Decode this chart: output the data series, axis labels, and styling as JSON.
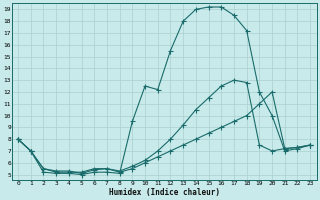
{
  "xlabel": "Humidex (Indice chaleur)",
  "xlim": [
    -0.5,
    23.5
  ],
  "ylim": [
    4.5,
    19.5
  ],
  "xticks": [
    0,
    1,
    2,
    3,
    4,
    5,
    6,
    7,
    8,
    9,
    10,
    11,
    12,
    13,
    14,
    15,
    16,
    17,
    18,
    19,
    20,
    21,
    22,
    23
  ],
  "yticks": [
    5,
    6,
    7,
    8,
    9,
    10,
    11,
    12,
    13,
    14,
    15,
    16,
    17,
    18,
    19
  ],
  "bg_color": "#c8eaea",
  "grid_color": "#aad0d0",
  "line_color": "#1a6b6b",
  "line1_x": [
    0,
    1,
    2,
    3,
    4,
    5,
    6,
    7,
    8,
    9,
    10,
    11,
    12,
    13,
    14,
    15,
    16,
    17,
    18,
    19,
    20,
    21,
    22,
    23
  ],
  "line1_y": [
    8,
    7,
    5.2,
    5.1,
    5.1,
    5.0,
    5.2,
    5.2,
    5.1,
    9.5,
    12.5,
    12.2,
    15.5,
    18.0,
    19.0,
    19.2,
    19.2,
    18.5,
    17.2,
    12.0,
    10.0,
    7.0,
    7.2,
    7.5
  ],
  "line2_x": [
    0,
    1,
    2,
    3,
    4,
    5,
    6,
    7,
    8,
    9,
    10,
    11,
    12,
    13,
    14,
    15,
    16,
    17,
    18,
    19,
    20,
    21,
    22,
    23
  ],
  "line2_y": [
    8,
    7,
    5.5,
    5.2,
    5.2,
    5.2,
    5.5,
    5.5,
    5.2,
    5.5,
    6.0,
    6.5,
    7.0,
    7.5,
    8.0,
    8.5,
    9.0,
    9.5,
    10.0,
    11.0,
    12.0,
    7.2,
    7.3,
    7.5
  ],
  "line3_x": [
    0,
    1,
    2,
    3,
    4,
    5,
    6,
    7,
    8,
    9,
    10,
    11,
    12,
    13,
    14,
    15,
    16,
    17,
    18,
    19,
    20,
    21,
    22,
    23
  ],
  "line3_y": [
    8.0,
    7.0,
    5.5,
    5.3,
    5.3,
    5.1,
    5.4,
    5.5,
    5.3,
    5.7,
    6.2,
    7.0,
    8.0,
    9.2,
    10.5,
    11.5,
    12.5,
    13.0,
    12.8,
    7.5,
    7.0,
    7.2,
    7.3,
    7.5
  ]
}
